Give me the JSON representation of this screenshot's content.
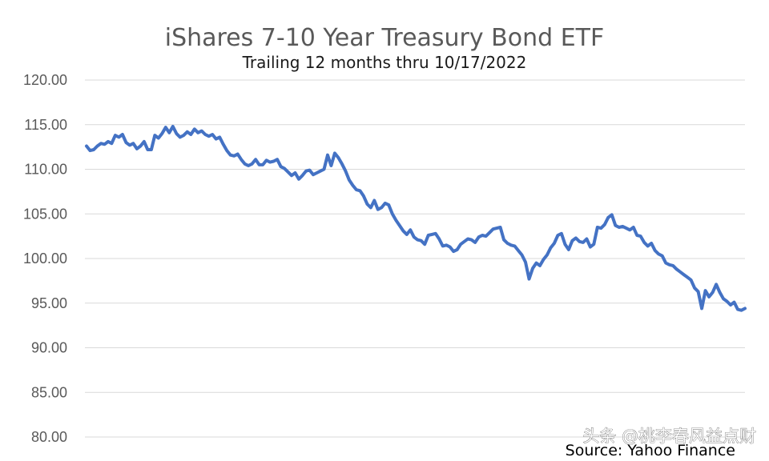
{
  "chart_data": {
    "type": "line",
    "title": "iShares 7-10 Year Treasury Bond ETF",
    "subtitle": "Trailing 12 months thru 10/17/2022",
    "source": "Source: Yahoo Finance",
    "watermark": "头条 @桃李春风益点财",
    "ylim": [
      80,
      120
    ],
    "yticks": [
      "80.00",
      "85.00",
      "90.00",
      "95.00",
      "100.00",
      "105.00",
      "110.00",
      "115.00",
      "120.00"
    ],
    "grid": true,
    "line_color": "#4472c4",
    "series": [
      {
        "name": "",
        "values": [
          112.6,
          112.1,
          112.2,
          112.6,
          112.9,
          112.8,
          113.1,
          112.9,
          113.8,
          113.6,
          113.9,
          113.0,
          112.7,
          112.9,
          112.3,
          112.6,
          113.1,
          112.2,
          112.2,
          113.8,
          113.5,
          114.0,
          114.7,
          114.1,
          114.8,
          114.0,
          113.6,
          113.8,
          114.2,
          113.9,
          114.5,
          114.1,
          114.3,
          113.9,
          113.7,
          113.9,
          113.4,
          113.6,
          112.8,
          112.1,
          111.6,
          111.5,
          111.7,
          111.1,
          110.6,
          110.4,
          110.6,
          111.1,
          110.5,
          110.5,
          111.0,
          110.8,
          110.9,
          111.1,
          110.3,
          110.1,
          109.7,
          109.3,
          109.6,
          108.9,
          109.3,
          109.8,
          109.9,
          109.4,
          109.6,
          109.8,
          110.0,
          111.6,
          110.4,
          111.8,
          111.3,
          110.6,
          109.8,
          108.8,
          108.2,
          107.7,
          107.6,
          107.0,
          106.1,
          105.7,
          106.5,
          105.5,
          105.7,
          106.2,
          106.0,
          105.0,
          104.3,
          103.7,
          103.1,
          102.7,
          103.2,
          102.4,
          102.1,
          102.0,
          101.6,
          102.6,
          102.7,
          102.8,
          102.2,
          101.4,
          101.5,
          101.3,
          100.8,
          101.0,
          101.6,
          101.9,
          102.2,
          102.1,
          101.8,
          102.4,
          102.6,
          102.5,
          102.9,
          103.3,
          103.4,
          103.5,
          102.1,
          101.7,
          101.5,
          101.4,
          100.9,
          100.4,
          99.6,
          97.7,
          98.9,
          99.5,
          99.2,
          99.9,
          100.4,
          101.2,
          101.7,
          102.6,
          102.8,
          101.6,
          101.0,
          102.0,
          102.3,
          101.9,
          101.8,
          102.2,
          101.3,
          101.6,
          103.5,
          103.4,
          103.8,
          104.6,
          104.9,
          103.7,
          103.5,
          103.6,
          103.4,
          103.2,
          103.5,
          102.6,
          102.5,
          101.8,
          101.4,
          101.7,
          100.9,
          100.5,
          100.3,
          99.5,
          99.3,
          99.2,
          98.8,
          98.5,
          98.2,
          97.9,
          97.6,
          96.7,
          96.3,
          94.4,
          96.4,
          95.7,
          96.2,
          97.1,
          96.2,
          95.5,
          95.2,
          94.8,
          95.1,
          94.3,
          94.2,
          94.4
        ]
      }
    ]
  }
}
